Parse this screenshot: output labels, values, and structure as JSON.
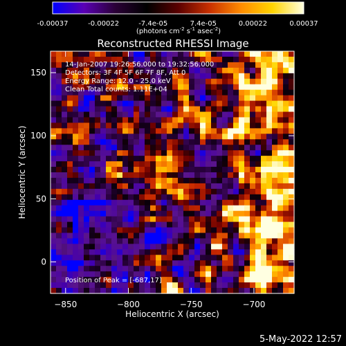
{
  "colorbar": {
    "tick_labels": [
      "-0.00037",
      "-0.00022",
      "-7.4e-05",
      "7.4e-05",
      "0.00022",
      "0.00037"
    ],
    "tick_values": [
      -0.00037,
      -0.00022,
      -7.4e-05,
      7.4e-05,
      0.00022,
      0.00037
    ],
    "range": [
      -0.00037,
      0.00037
    ],
    "unit_main": "(photons cm",
    "unit_exp1": "-2",
    "unit_mid": " s",
    "unit_exp2": "-1",
    "unit_mid2": " asec",
    "unit_exp3": "-2",
    "unit_end": ")",
    "colors": [
      "#0000ff",
      "#5a00b4",
      "#2a0036",
      "#000000",
      "#5a0000",
      "#c83000",
      "#ff8c00",
      "#ffd400",
      "#ffffe0"
    ]
  },
  "chart_data": {
    "type": "heatmap",
    "title": "Reconstructed RHESSI Image",
    "xlabel": "Heliocentric X (arcsec)",
    "ylabel": "Heliocentric Y (arcsec)",
    "xlim": [
      -862,
      -668
    ],
    "ylim": [
      -25,
      167
    ],
    "x_ticks": [
      -850,
      -800,
      -750,
      -700
    ],
    "x_tick_labels": [
      "−850",
      "−800",
      "−750",
      "−700"
    ],
    "y_ticks": [
      0,
      50,
      100,
      150
    ],
    "y_tick_labels": [
      "0",
      "50",
      "100",
      "150"
    ],
    "annotations": [
      "14-Jan-2007 19:26:56.000 to 19:32:56.000",
      "Detectors: 3F 4F 5F 6F 7F 8F, Att 0",
      "Energy Range: 12.0 - 25.0 keV",
      "Clean     Total counts: 1.11E+04"
    ],
    "peak_label": "Position of Peak = [-687,17]",
    "peak": [
      -687,
      17
    ],
    "grid": false,
    "colormap": "blue-purple-black-red-yellow-white"
  },
  "footer": {
    "date": "5-May-2022 12:57"
  }
}
